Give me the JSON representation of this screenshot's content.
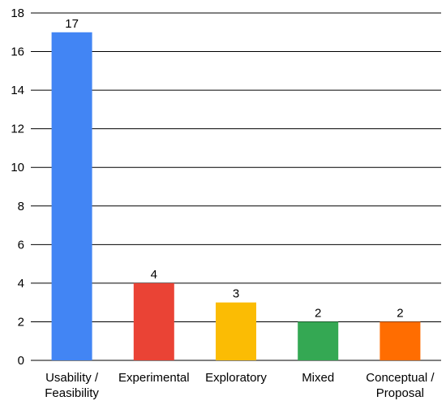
{
  "chart_data": {
    "type": "bar",
    "title": "",
    "xlabel": "",
    "ylabel": "",
    "categories": [
      [
        "Usability /",
        "Feasibility"
      ],
      [
        "Experimental"
      ],
      [
        "Exploratory"
      ],
      [
        "Mixed"
      ],
      [
        "Conceptual /",
        "Proposal"
      ]
    ],
    "values": [
      17,
      4,
      3,
      2,
      2
    ],
    "data_labels": [
      "17",
      "4",
      "3",
      "2",
      "2"
    ],
    "colors": [
      "#4285F4",
      "#EA4335",
      "#FBBC04",
      "#34A853",
      "#FF6D01"
    ],
    "ylim": [
      0,
      18
    ],
    "yticks": [
      0,
      2,
      4,
      6,
      8,
      10,
      12,
      14,
      16,
      18
    ],
    "grid": true,
    "legend": "none"
  }
}
